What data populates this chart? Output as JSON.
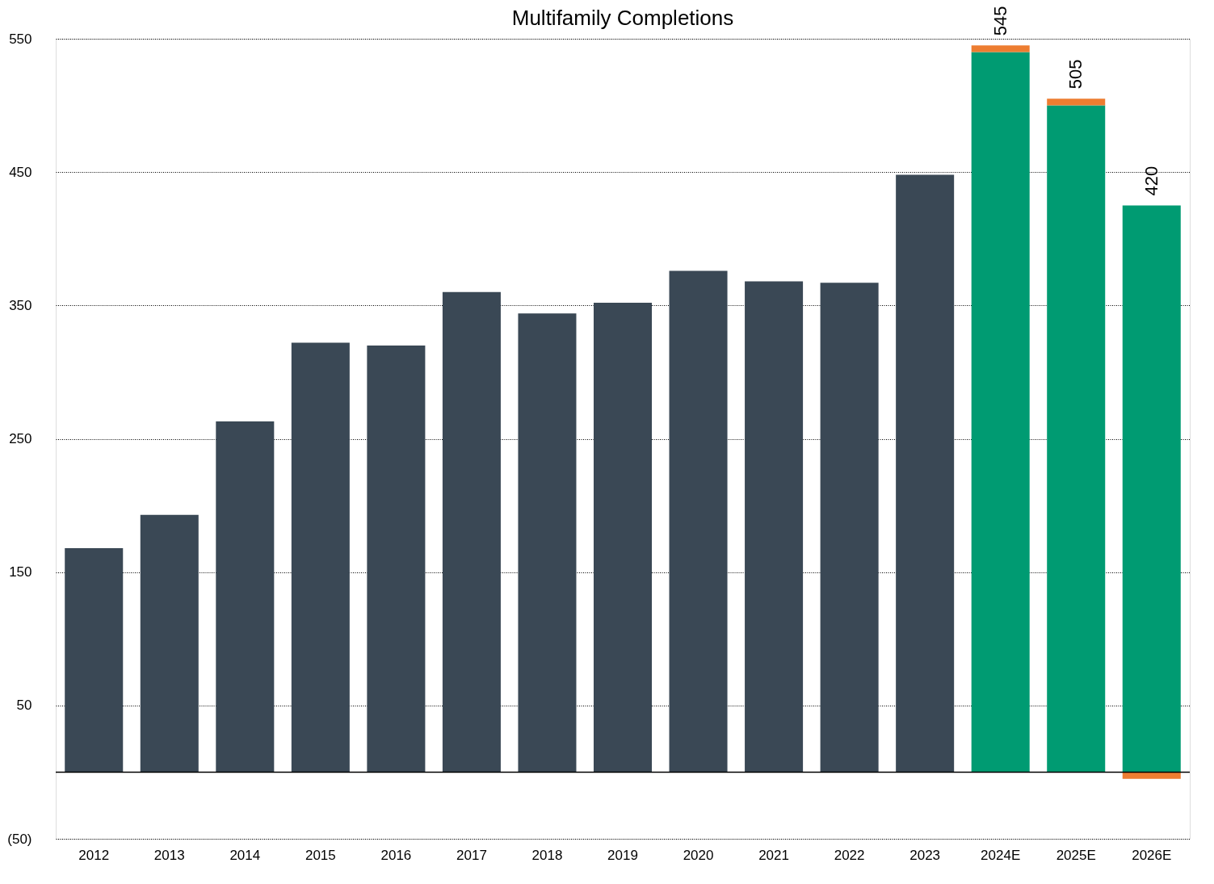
{
  "chart_data": {
    "type": "bar",
    "title": "Multifamily Completions",
    "categories": [
      "2012",
      "2013",
      "2014",
      "2015",
      "2016",
      "2017",
      "2018",
      "2019",
      "2020",
      "2021",
      "2022",
      "2023",
      "2024E",
      "2025E",
      "2026E"
    ],
    "series": [
      {
        "colors": [
          "#3a4855",
          "#3a4855",
          "#3a4855",
          "#3a4855",
          "#3a4855",
          "#3a4855",
          "#3a4855",
          "#3a4855",
          "#3a4855",
          "#3a4855",
          "#3a4855",
          "#3a4855",
          "#009b72",
          "#009b72",
          "#009b72"
        ],
        "values": [
          168,
          193,
          263,
          322,
          320,
          360,
          344,
          352,
          376,
          368,
          367,
          448,
          540,
          500,
          425
        ]
      },
      {
        "color": "#ed7d31",
        "values": [
          null,
          null,
          null,
          null,
          null,
          null,
          null,
          null,
          null,
          null,
          null,
          null,
          5,
          5,
          -5
        ]
      }
    ],
    "stacked": true,
    "totals": [
      null,
      null,
      null,
      null,
      null,
      null,
      null,
      null,
      null,
      null,
      null,
      null,
      "545",
      "505",
      "420"
    ],
    "ylim": [
      -50,
      550
    ],
    "yticks": [
      {
        "value": -50,
        "label": "(50)"
      },
      50,
      150,
      250,
      350,
      450,
      550
    ],
    "ref_lines": [
      {
        "axis": "y",
        "value": 0,
        "label": null,
        "color": "#000000",
        "line_style": "solid"
      }
    ],
    "grid": "y"
  }
}
